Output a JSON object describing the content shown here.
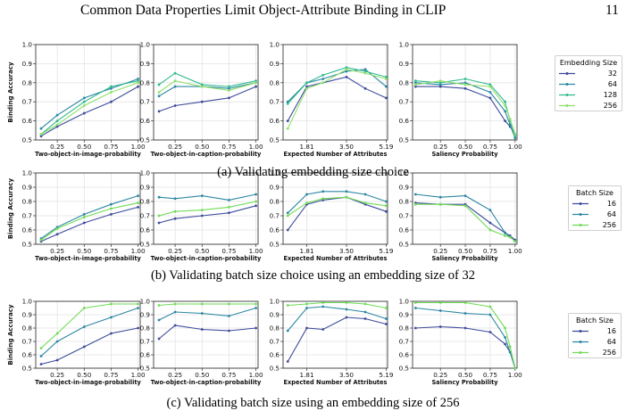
{
  "header": {
    "title": "Common Data Properties Limit Object-Attribute Binding in CLIP",
    "page_number": "11"
  },
  "captions": [
    "(a) Validating embedding size choice",
    "(b) Validating batch size choice using an embedding size of 32",
    "(c) Validating batch size using an embedding size of 256"
  ],
  "legends": [
    {
      "title": "Embedding Size",
      "entries": [
        "32",
        "64",
        "128",
        "256"
      ]
    },
    {
      "title": "Batch Size",
      "entries": [
        "16",
        "64",
        "256"
      ]
    },
    {
      "title": "Batch Size",
      "entries": [
        "16",
        "64",
        "256"
      ]
    }
  ],
  "series_colors": {
    "32": "#3d4a9a",
    "64": "#2a86a2",
    "128": "#2fba8e",
    "256": "#8ee06a",
    "16": "#3d4a9a",
    "64b": "#2a86a2",
    "256b": "#6fdc55"
  },
  "chart_data": [
    {
      "type": "line",
      "row": "a",
      "xlabel": "Two-object-in-image-probability",
      "ylabel": "Binding Accuracy",
      "xticks": [
        "0.25",
        "0.50",
        "0.75",
        "1.00"
      ],
      "yticks": [
        "0.5",
        "0.6",
        "0.7",
        "0.8",
        "0.9",
        "1.0"
      ],
      "ylim": [
        0.5,
        1.0
      ],
      "xlim": [
        0.05,
        1.02
      ],
      "x": [
        0.1,
        0.25,
        0.5,
        0.75,
        1.0
      ],
      "series": [
        {
          "name": "32",
          "values": [
            0.52,
            0.57,
            0.64,
            0.7,
            0.78
          ]
        },
        {
          "name": "64",
          "values": [
            0.56,
            0.63,
            0.72,
            0.77,
            0.82
          ]
        },
        {
          "name": "128",
          "values": [
            0.53,
            0.6,
            0.7,
            0.78,
            0.81
          ]
        },
        {
          "name": "256",
          "values": [
            0.53,
            0.58,
            0.68,
            0.75,
            0.8
          ]
        }
      ]
    },
    {
      "type": "line",
      "row": "a",
      "xlabel": "Two-object-in-caption-probability",
      "ylabel": "",
      "xticks": [
        "0.25",
        "0.50",
        "0.75",
        "1.00"
      ],
      "yticks": [
        "0.5",
        "0.6",
        "0.7",
        "0.8",
        "0.9",
        "1.0"
      ],
      "ylim": [
        0.5,
        1.0
      ],
      "xlim": [
        0.05,
        1.02
      ],
      "x": [
        0.1,
        0.25,
        0.5,
        0.75,
        1.0
      ],
      "series": [
        {
          "name": "32",
          "values": [
            0.65,
            0.68,
            0.7,
            0.72,
            0.78
          ]
        },
        {
          "name": "64",
          "values": [
            0.73,
            0.78,
            0.78,
            0.77,
            0.8
          ]
        },
        {
          "name": "128",
          "values": [
            0.79,
            0.85,
            0.79,
            0.78,
            0.81
          ]
        },
        {
          "name": "256",
          "values": [
            0.75,
            0.81,
            0.78,
            0.76,
            0.8
          ]
        }
      ]
    },
    {
      "type": "line",
      "row": "a",
      "xlabel": "Expected Number of Attributes",
      "ylabel": "",
      "xticks": [
        "1.81",
        "3.50",
        "5.19"
      ],
      "yticks": [
        "0.5",
        "0.6",
        "0.7",
        "0.8",
        "0.9",
        "1.0"
      ],
      "ylim": [
        0.5,
        1.0
      ],
      "xlim": [
        0.8,
        5.25
      ],
      "x": [
        1.0,
        1.81,
        2.5,
        3.5,
        4.3,
        5.19
      ],
      "series": [
        {
          "name": "32",
          "values": [
            0.6,
            0.78,
            0.8,
            0.83,
            0.77,
            0.72
          ]
        },
        {
          "name": "64",
          "values": [
            0.7,
            0.8,
            0.82,
            0.86,
            0.87,
            0.78
          ]
        },
        {
          "name": "128",
          "values": [
            0.69,
            0.8,
            0.84,
            0.88,
            0.86,
            0.83
          ]
        },
        {
          "name": "256",
          "values": [
            0.56,
            0.77,
            0.8,
            0.87,
            0.85,
            0.82
          ]
        }
      ]
    },
    {
      "type": "line",
      "row": "a",
      "xlabel": "Saliency Probability",
      "ylabel": "",
      "xticks": [
        "0.25",
        "0.50",
        "0.75",
        "1.00"
      ],
      "yticks": [
        "0.5",
        "0.6",
        "0.7",
        "0.8",
        "0.9",
        "1.0"
      ],
      "ylim": [
        0.5,
        1.0
      ],
      "xlim": [
        -0.03,
        1.02
      ],
      "x": [
        0.0,
        0.25,
        0.5,
        0.75,
        0.9,
        0.95,
        1.0
      ],
      "series": [
        {
          "name": "32",
          "values": [
            0.78,
            0.78,
            0.77,
            0.72,
            0.6,
            0.57,
            0.53
          ]
        },
        {
          "name": "64",
          "values": [
            0.8,
            0.79,
            0.8,
            0.75,
            0.65,
            0.58,
            0.51
          ]
        },
        {
          "name": "128",
          "values": [
            0.81,
            0.8,
            0.82,
            0.79,
            0.7,
            0.6,
            0.52
          ]
        },
        {
          "name": "256",
          "values": [
            0.79,
            0.81,
            0.79,
            0.78,
            0.68,
            0.61,
            0.53
          ]
        }
      ]
    },
    {
      "type": "line",
      "row": "b",
      "xlabel": "Two-object-in-image-probability",
      "ylabel": "Binding Accuracy",
      "xticks": [
        "0.25",
        "0.50",
        "0.75",
        "1.00"
      ],
      "yticks": [
        "0.5",
        "0.6",
        "0.7",
        "0.8",
        "0.9",
        "1.0"
      ],
      "ylim": [
        0.5,
        1.0
      ],
      "xlim": [
        0.05,
        1.02
      ],
      "x": [
        0.1,
        0.25,
        0.5,
        0.75,
        1.0
      ],
      "series": [
        {
          "name": "16",
          "values": [
            0.52,
            0.57,
            0.65,
            0.71,
            0.76
          ]
        },
        {
          "name": "64",
          "values": [
            0.54,
            0.62,
            0.71,
            0.78,
            0.84
          ]
        },
        {
          "name": "256",
          "values": [
            0.53,
            0.61,
            0.69,
            0.75,
            0.79
          ]
        }
      ]
    },
    {
      "type": "line",
      "row": "b",
      "xlabel": "Two-object-in-caption-probability",
      "ylabel": "",
      "xticks": [
        "0.25",
        "0.50",
        "0.75",
        "1.00"
      ],
      "yticks": [
        "0.5",
        "0.6",
        "0.7",
        "0.8",
        "0.9",
        "1.0"
      ],
      "ylim": [
        0.5,
        1.0
      ],
      "xlim": [
        0.05,
        1.02
      ],
      "x": [
        0.1,
        0.25,
        0.5,
        0.75,
        1.0
      ],
      "series": [
        {
          "name": "16",
          "values": [
            0.65,
            0.68,
            0.7,
            0.72,
            0.77
          ]
        },
        {
          "name": "64",
          "values": [
            0.83,
            0.82,
            0.84,
            0.81,
            0.85
          ]
        },
        {
          "name": "256",
          "values": [
            0.7,
            0.73,
            0.74,
            0.76,
            0.8
          ]
        }
      ]
    },
    {
      "type": "line",
      "row": "b",
      "xlabel": "Expected Number of Attributes",
      "ylabel": "",
      "xticks": [
        "1.81",
        "3.50",
        "5.19"
      ],
      "yticks": [
        "0.5",
        "0.6",
        "0.7",
        "0.8",
        "0.9",
        "1.0"
      ],
      "ylim": [
        0.5,
        1.0
      ],
      "xlim": [
        0.8,
        5.25
      ],
      "x": [
        1.0,
        1.81,
        2.5,
        3.5,
        4.3,
        5.19
      ],
      "series": [
        {
          "name": "16",
          "values": [
            0.6,
            0.78,
            0.81,
            0.83,
            0.78,
            0.73
          ]
        },
        {
          "name": "64",
          "values": [
            0.72,
            0.85,
            0.87,
            0.87,
            0.85,
            0.8
          ]
        },
        {
          "name": "256",
          "values": [
            0.7,
            0.79,
            0.82,
            0.83,
            0.79,
            0.77
          ]
        }
      ]
    },
    {
      "type": "line",
      "row": "b",
      "xlabel": "Saliency Probability",
      "ylabel": "",
      "xticks": [
        "0.25",
        "0.50",
        "0.75",
        "1.00"
      ],
      "yticks": [
        "0.5",
        "0.6",
        "0.7",
        "0.8",
        "0.9",
        "1.0"
      ],
      "ylim": [
        0.5,
        1.0
      ],
      "xlim": [
        -0.03,
        1.02
      ],
      "x": [
        0.0,
        0.25,
        0.5,
        0.75,
        0.9,
        0.95,
        1.0
      ],
      "series": [
        {
          "name": "16",
          "values": [
            0.79,
            0.78,
            0.78,
            0.65,
            0.58,
            0.56,
            0.53
          ]
        },
        {
          "name": "64",
          "values": [
            0.85,
            0.83,
            0.84,
            0.74,
            0.58,
            0.55,
            0.52
          ]
        },
        {
          "name": "256",
          "values": [
            0.78,
            0.78,
            0.77,
            0.6,
            0.56,
            0.55,
            0.52
          ]
        }
      ]
    },
    {
      "type": "line",
      "row": "c",
      "xlabel": "Two-object-in-image-probability",
      "ylabel": "Binding Accuracy",
      "xticks": [
        "0.25",
        "0.50",
        "0.75",
        "1.00"
      ],
      "yticks": [
        "0.5",
        "0.6",
        "0.7",
        "0.8",
        "0.9",
        "1.0"
      ],
      "ylim": [
        0.5,
        1.0
      ],
      "xlim": [
        0.05,
        1.02
      ],
      "x": [
        0.1,
        0.25,
        0.5,
        0.75,
        1.0
      ],
      "series": [
        {
          "name": "16",
          "values": [
            0.53,
            0.56,
            0.66,
            0.76,
            0.8
          ]
        },
        {
          "name": "64",
          "values": [
            0.59,
            0.7,
            0.81,
            0.88,
            0.95
          ]
        },
        {
          "name": "256",
          "values": [
            0.65,
            0.76,
            0.95,
            0.98,
            0.98
          ]
        }
      ]
    },
    {
      "type": "line",
      "row": "c",
      "xlabel": "Two-object-in-caption-probability",
      "ylabel": "",
      "xticks": [
        "0.25",
        "0.50",
        "0.75",
        "1.00"
      ],
      "yticks": [
        "0.5",
        "0.6",
        "0.7",
        "0.8",
        "0.9",
        "1.0"
      ],
      "ylim": [
        0.5,
        1.0
      ],
      "xlim": [
        0.05,
        1.02
      ],
      "x": [
        0.1,
        0.25,
        0.5,
        0.75,
        1.0
      ],
      "series": [
        {
          "name": "16",
          "values": [
            0.72,
            0.82,
            0.79,
            0.78,
            0.8
          ]
        },
        {
          "name": "64",
          "values": [
            0.86,
            0.92,
            0.91,
            0.89,
            0.95
          ]
        },
        {
          "name": "256",
          "values": [
            0.97,
            0.98,
            0.98,
            0.98,
            0.98
          ]
        }
      ]
    },
    {
      "type": "line",
      "row": "c",
      "xlabel": "Expected Number of Attributes",
      "ylabel": "",
      "xticks": [
        "1.81",
        "3.50",
        "5.19"
      ],
      "yticks": [
        "0.5",
        "0.6",
        "0.7",
        "0.8",
        "0.9",
        "1.0"
      ],
      "ylim": [
        0.5,
        1.0
      ],
      "xlim": [
        0.8,
        5.25
      ],
      "x": [
        1.0,
        1.81,
        2.5,
        3.5,
        4.3,
        5.19
      ],
      "series": [
        {
          "name": "16",
          "values": [
            0.55,
            0.8,
            0.79,
            0.88,
            0.87,
            0.83
          ]
        },
        {
          "name": "64",
          "values": [
            0.78,
            0.95,
            0.96,
            0.94,
            0.92,
            0.87
          ]
        },
        {
          "name": "256",
          "values": [
            0.97,
            0.98,
            0.99,
            0.99,
            0.98,
            0.95
          ]
        }
      ]
    },
    {
      "type": "line",
      "row": "c",
      "xlabel": "Saliency Probability",
      "ylabel": "",
      "xticks": [
        "0.25",
        "0.50",
        "0.75",
        "1.00"
      ],
      "yticks": [
        "0.5",
        "0.6",
        "0.7",
        "0.8",
        "0.9",
        "1.0"
      ],
      "ylim": [
        0.5,
        1.0
      ],
      "xlim": [
        -0.03,
        1.02
      ],
      "x": [
        0.0,
        0.25,
        0.5,
        0.75,
        0.9,
        0.95,
        1.0
      ],
      "series": [
        {
          "name": "16",
          "values": [
            0.8,
            0.81,
            0.8,
            0.77,
            0.68,
            0.62,
            0.5
          ]
        },
        {
          "name": "64",
          "values": [
            0.95,
            0.93,
            0.91,
            0.9,
            0.73,
            0.62,
            0.5
          ]
        },
        {
          "name": "256",
          "values": [
            0.99,
            0.99,
            0.99,
            0.96,
            0.8,
            0.66,
            0.5
          ]
        }
      ]
    }
  ]
}
